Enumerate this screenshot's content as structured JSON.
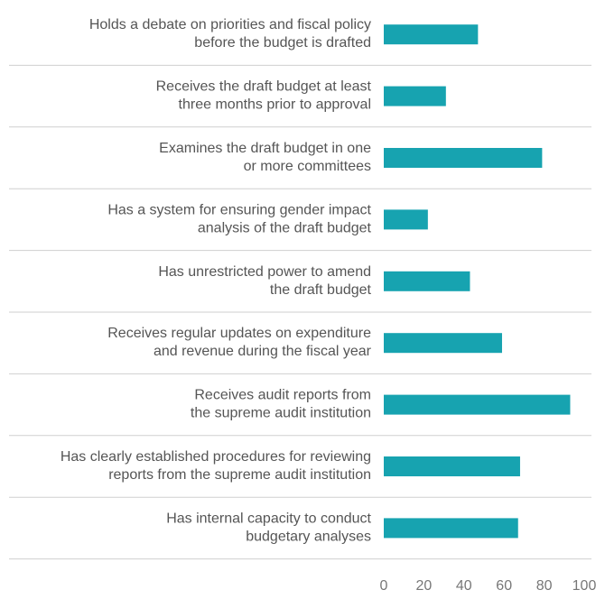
{
  "chart_data": {
    "type": "barh",
    "categories": [
      [
        "Holds a debate on priorities and fiscal policy",
        "before the budget is drafted"
      ],
      [
        "Receives the draft budget at least",
        "three months prior to approval"
      ],
      [
        "Examines the draft budget in one",
        "or more committees"
      ],
      [
        "Has a system for ensuring gender impact",
        "analysis of the draft budget"
      ],
      [
        "Has unrestricted power to amend",
        "the draft budget"
      ],
      [
        "Receives regular updates on expenditure",
        "and revenue during the fiscal year"
      ],
      [
        "Receives audit reports from",
        "the supreme audit institution"
      ],
      [
        "Has clearly established procedures for reviewing",
        "reports from the supreme audit institution"
      ],
      [
        "Has internal capacity to conduct",
        "budgetary analyses"
      ]
    ],
    "values": [
      47,
      31,
      79,
      22,
      43,
      59,
      93,
      68,
      67
    ],
    "color": "#17a3b0",
    "xlim": [
      0,
      100
    ],
    "xticks": [
      0,
      20,
      40,
      60,
      80,
      100
    ],
    "grid": false
  }
}
